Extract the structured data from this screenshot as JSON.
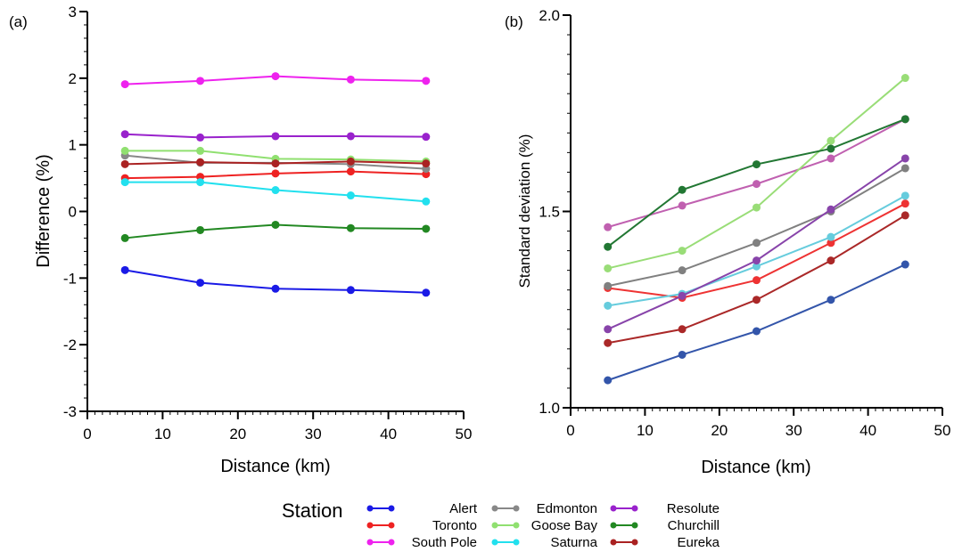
{
  "panels": [
    {
      "label": "(a)",
      "chart_data": {
        "type": "line",
        "xlabel": "Distance  (km)",
        "ylabel": "Difference (%)",
        "x": [
          5,
          15,
          25,
          35,
          45
        ],
        "xlim": [
          0,
          50
        ],
        "ylim": [
          -3,
          3
        ],
        "xticks": [
          0,
          10,
          20,
          30,
          40,
          50
        ],
        "yticks": [
          -3,
          -2,
          -1,
          0,
          1,
          2,
          3
        ],
        "ytick_labels": [
          "-3",
          "-2",
          "-1",
          "0",
          "1",
          "2",
          "3"
        ],
        "grid": false,
        "series": [
          {
            "name": "Alert",
            "color": "#1a1ae6",
            "values": [
              -0.88,
              -1.07,
              -1.16,
              -1.18,
              -1.22
            ]
          },
          {
            "name": "Toronto",
            "color": "#ee2222",
            "values": [
              0.5,
              0.52,
              0.57,
              0.6,
              0.56
            ]
          },
          {
            "name": "South Pole",
            "color": "#ee22ee",
            "values": [
              1.91,
              1.96,
              2.03,
              1.98,
              1.96
            ]
          },
          {
            "name": "Edmonton",
            "color": "#888888",
            "values": [
              0.84,
              0.73,
              0.73,
              0.71,
              0.64
            ]
          },
          {
            "name": "Goose Bay",
            "color": "#90e070",
            "values": [
              0.91,
              0.91,
              0.79,
              0.78,
              0.75
            ]
          },
          {
            "name": "Saturna",
            "color": "#22e0ee",
            "values": [
              0.44,
              0.44,
              0.32,
              0.24,
              0.15
            ]
          },
          {
            "name": "Resolute",
            "color": "#9922cc",
            "values": [
              1.16,
              1.11,
              1.13,
              1.13,
              1.12
            ]
          },
          {
            "name": "Churchill",
            "color": "#228822",
            "values": [
              -0.4,
              -0.28,
              -0.2,
              -0.25,
              -0.26
            ]
          },
          {
            "name": "Eureka",
            "color": "#aa2222",
            "values": [
              0.71,
              0.74,
              0.72,
              0.75,
              0.72
            ]
          }
        ]
      }
    },
    {
      "label": "(b)",
      "chart_data": {
        "type": "line",
        "xlabel": "Distance  (km)",
        "ylabel": "Standard deviation  (%)",
        "x": [
          5,
          15,
          25,
          35,
          45
        ],
        "xlim": [
          0,
          50
        ],
        "ylim": [
          1.0,
          2.0
        ],
        "xticks": [
          0,
          10,
          20,
          30,
          40,
          50
        ],
        "yticks": [
          1.0,
          1.5,
          2.0
        ],
        "ytick_labels": [
          "1.0",
          "1.5",
          "2.0"
        ],
        "grid": false,
        "series": [
          {
            "name": "Alert",
            "color": "#3355aa",
            "values": [
              1.07,
              1.135,
              1.195,
              1.275,
              1.365
            ]
          },
          {
            "name": "Toronto",
            "color": "#ee3333",
            "values": [
              1.305,
              1.28,
              1.325,
              1.42,
              1.52
            ]
          },
          {
            "name": "South Pole",
            "color": "#c060b0",
            "values": [
              1.46,
              1.515,
              1.57,
              1.635,
              1.735
            ]
          },
          {
            "name": "Edmonton",
            "color": "#808080",
            "values": [
              1.31,
              1.35,
              1.42,
              1.5,
              1.61
            ]
          },
          {
            "name": "Goose Bay",
            "color": "#99dd77",
            "values": [
              1.355,
              1.4,
              1.51,
              1.68,
              1.84
            ]
          },
          {
            "name": "Saturna",
            "color": "#66ccdd",
            "values": [
              1.26,
              1.29,
              1.36,
              1.435,
              1.54
            ]
          },
          {
            "name": "Resolute",
            "color": "#8844aa",
            "values": [
              1.2,
              1.285,
              1.375,
              1.505,
              1.635
            ]
          },
          {
            "name": "Churchill",
            "color": "#227733",
            "values": [
              1.41,
              1.555,
              1.62,
              1.66,
              1.735
            ]
          },
          {
            "name": "Eureka",
            "color": "#aa2828",
            "values": [
              1.165,
              1.2,
              1.275,
              1.375,
              1.49
            ]
          }
        ]
      }
    }
  ],
  "legend": {
    "title": "Station",
    "placement": "bottom-center",
    "entries": [
      {
        "name": "Alert",
        "color": "#1a1ae6"
      },
      {
        "name": "Toronto",
        "color": "#ee2222"
      },
      {
        "name": "South Pole",
        "color": "#ee22ee"
      },
      {
        "name": "Edmonton",
        "color": "#888888"
      },
      {
        "name": "Goose Bay",
        "color": "#90e070"
      },
      {
        "name": "Saturna",
        "color": "#22e0ee"
      },
      {
        "name": "Resolute",
        "color": "#9922cc"
      },
      {
        "name": "Churchill",
        "color": "#228822"
      },
      {
        "name": "Eureka",
        "color": "#aa2222"
      }
    ]
  }
}
